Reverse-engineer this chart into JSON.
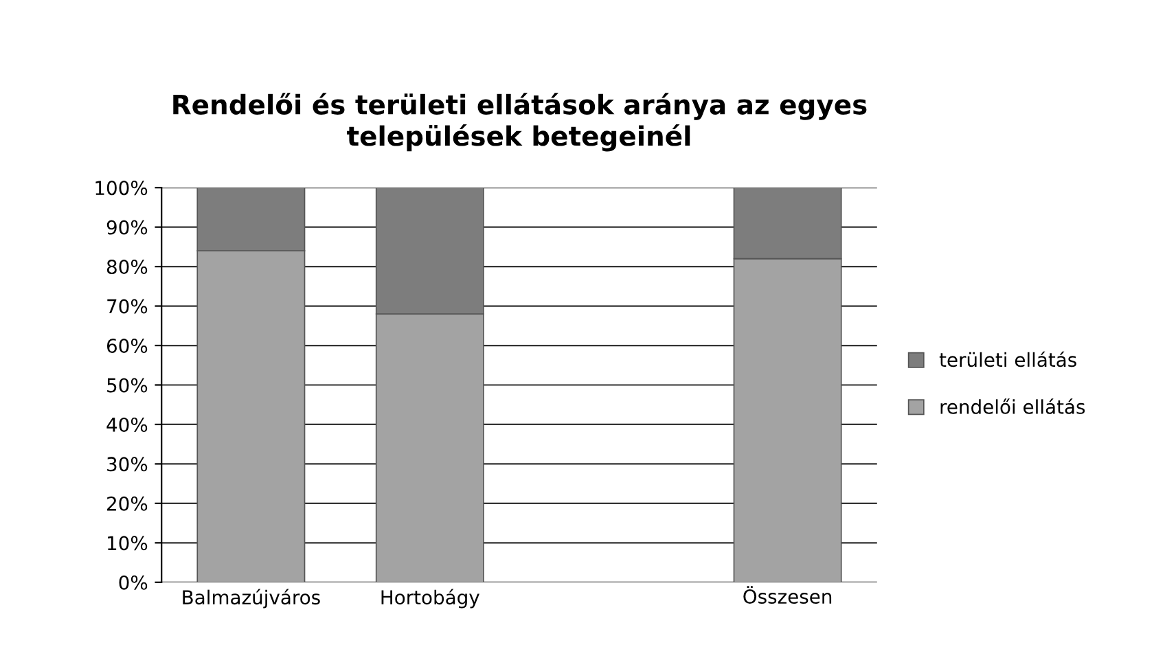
{
  "chart_data": {
    "type": "bar",
    "stacked": true,
    "title": "Rendelői és területi ellátások aránya az egyes\ntelepülések betegeinél",
    "categories": [
      "Balmazújváros",
      "Hortobágy",
      null,
      "Összesen"
    ],
    "series": [
      {
        "name": "rendelői ellátás",
        "color": "#a3a3a3",
        "values": [
          84,
          68,
          null,
          82
        ]
      },
      {
        "name": "területi ellátás",
        "color": "#7d7d7d",
        "values": [
          16,
          32,
          null,
          18
        ]
      }
    ],
    "ylim": [
      0,
      100
    ],
    "yticks": [
      {
        "value": 0,
        "label": "0%"
      },
      {
        "value": 10,
        "label": "10%"
      },
      {
        "value": 20,
        "label": "20%"
      },
      {
        "value": 30,
        "label": "30%"
      },
      {
        "value": 40,
        "label": "40%"
      },
      {
        "value": 50,
        "label": "50%"
      },
      {
        "value": 60,
        "label": "60%"
      },
      {
        "value": 70,
        "label": "70%"
      },
      {
        "value": 80,
        "label": "80%"
      },
      {
        "value": 90,
        "label": "90%"
      },
      {
        "value": 100,
        "label": "100%"
      }
    ],
    "grid": "y",
    "legend": "right"
  }
}
